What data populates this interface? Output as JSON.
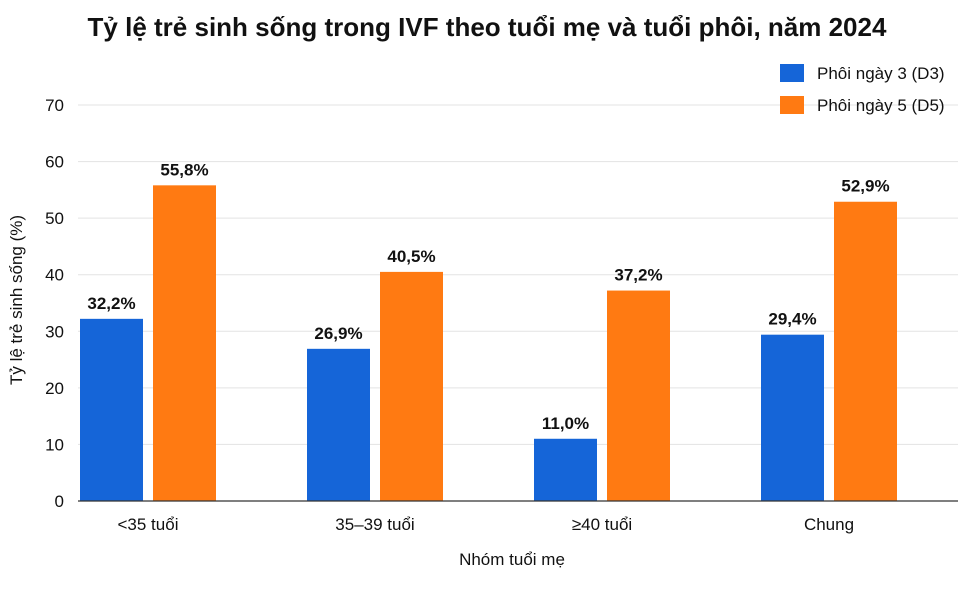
{
  "chart_data": {
    "type": "bar",
    "title": "Tỷ lệ trẻ sinh sống trong IVF theo tuổi mẹ và tuổi phôi, năm 2024",
    "xlabel": "Nhóm tuổi mẹ",
    "ylabel": "Tỷ lệ trẻ sinh sống (%)",
    "ylim": [
      0,
      70
    ],
    "yticks": [
      0,
      10,
      20,
      30,
      40,
      50,
      60,
      70
    ],
    "grid": "horizontal",
    "legend_position": "top-right",
    "categories": [
      "<35 tuổi",
      "35–39 tuổi",
      "≥40 tuổi",
      "Chung"
    ],
    "series": [
      {
        "name": "Phôi ngày 3 (D3)",
        "color": "#1565d8",
        "values": [
          32.2,
          26.9,
          11.0,
          29.4
        ],
        "labels": [
          "32,2%",
          "26,9%",
          "11,0%",
          "29,4%"
        ]
      },
      {
        "name": "Phôi ngày 5 (D5)",
        "color": "#ff7a12",
        "values": [
          55.8,
          40.5,
          37.2,
          52.9
        ],
        "labels": [
          "55,8%",
          "40,5%",
          "37,2%",
          "52,9%"
        ]
      }
    ]
  }
}
